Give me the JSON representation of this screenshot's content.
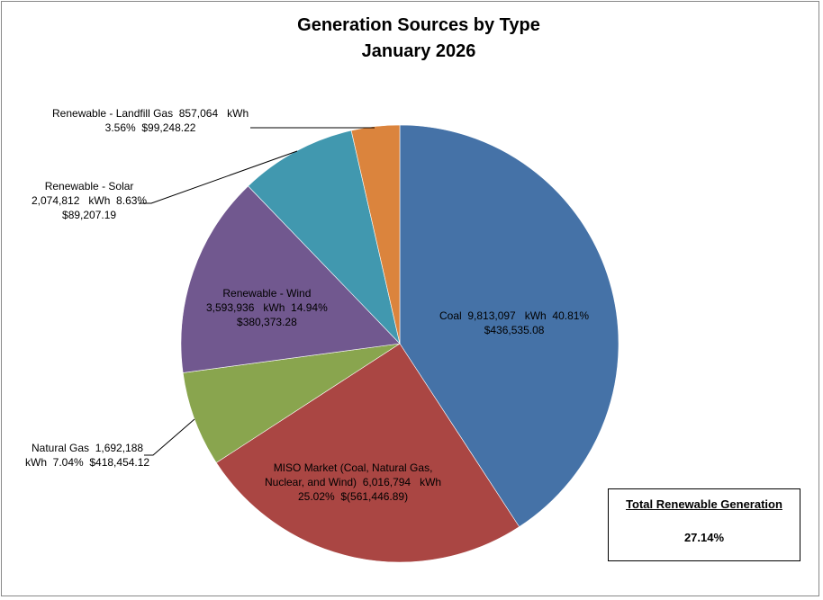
{
  "chart_data": {
    "type": "pie",
    "title": "Generation Sources by Type",
    "subtitle": "January 2026",
    "slices": [
      {
        "name": "Coal",
        "percent": 40.81,
        "color": "#4572A7",
        "label": [
          "Coal  9,813,097   kWh  40.81%",
          "$436,535.08"
        ]
      },
      {
        "name": "MISO Market (Coal, Natural Gas, Nuclear, and Wind)",
        "percent": 25.02,
        "color": "#AA4643",
        "label": [
          "MISO Market (Coal, Natural Gas,",
          "Nuclear, and Wind)  6,016,794   kWh",
          "25.02%  $(561,446.89)"
        ]
      },
      {
        "name": "Natural Gas",
        "percent": 7.04,
        "color": "#89A54E",
        "label": [
          "Natural Gas  1,692,188",
          "kWh  7.04%  $418,454.12"
        ]
      },
      {
        "name": "Renewable - Wind",
        "percent": 14.94,
        "color": "#71588F",
        "label": [
          "Renewable - Wind",
          "3,593,936   kWh  14.94%",
          "$380,373.28"
        ]
      },
      {
        "name": "Renewable - Solar",
        "percent": 8.63,
        "color": "#4198AF",
        "label": [
          "Renewable - Solar",
          "2,074,812   kWh  8.63%",
          "$89,207.19"
        ]
      },
      {
        "name": "Renewable - Landfill Gas",
        "percent": 3.56,
        "color": "#DB843D",
        "label": [
          "Renewable - Landfill Gas  857,064   kWh",
          "3.56%  $99,248.22"
        ]
      }
    ],
    "start": "top",
    "direction": "clockwise"
  },
  "summary": {
    "title": "Total Renewable Generation",
    "value": "27.14%"
  }
}
